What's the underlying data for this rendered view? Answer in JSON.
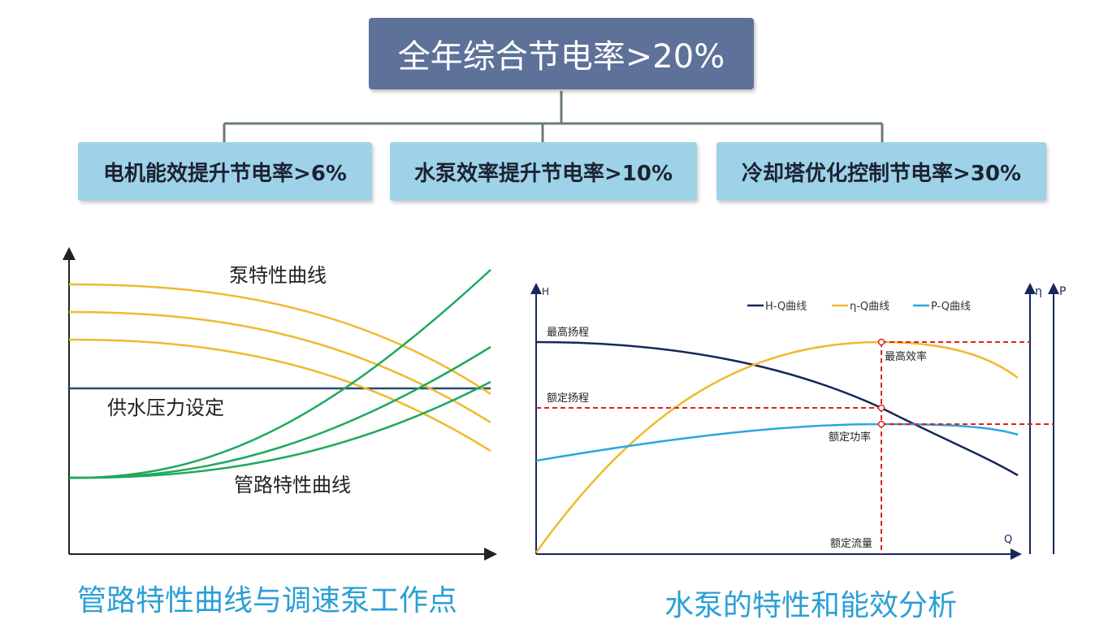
{
  "top": {
    "title": "全年综合节电率>20%"
  },
  "branches": [
    {
      "label": "电机能效提升节电率>6%"
    },
    {
      "label": "水泵效率提升节电率>10%"
    },
    {
      "label": "冷却塔优化控制节电率>30%"
    }
  ],
  "left_chart": {
    "pump_label": "泵特性曲线",
    "supply_label": "供水压力设定",
    "pipe_label": "管路特性曲线",
    "caption": "管路特性曲线与调速泵工作点"
  },
  "right_chart": {
    "axis_h": "H",
    "axis_eta": "η",
    "axis_p": "P",
    "axis_q": "Q",
    "legend": [
      {
        "name": "H-Q曲线",
        "color": "#17275c"
      },
      {
        "name": "η-Q曲线",
        "color": "#f0b92e"
      },
      {
        "name": "P-Q曲线",
        "color": "#2aa7e0"
      }
    ],
    "label_max_head": "最高扬程",
    "label_rated_head": "额定扬程",
    "label_max_eff": "最高效率",
    "label_rated_power": "额定功率",
    "label_rated_flow": "额定流量",
    "caption": "水泵的特性和能效分析"
  },
  "colors": {
    "pump": "#f0b92e",
    "pipe": "#1fa95c",
    "supply": "#2c4a72",
    "dashed": "#e02020",
    "header": "#5d7199",
    "subbox": "#9ed2e8"
  }
}
